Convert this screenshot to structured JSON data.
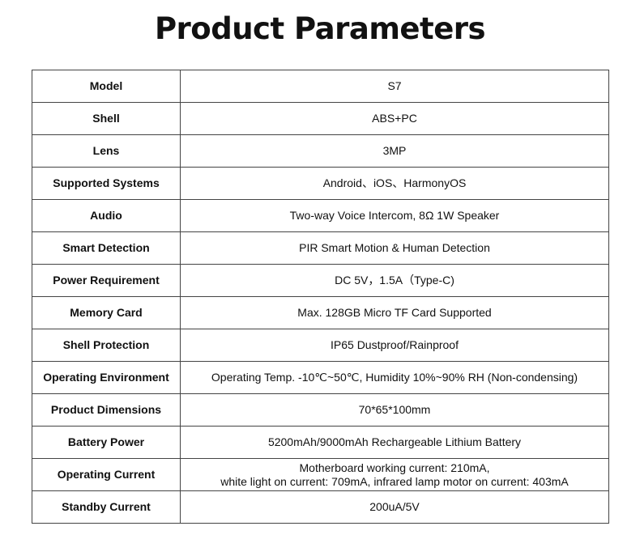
{
  "title": "Product Parameters",
  "rows": [
    {
      "label": "Model",
      "value": "S7"
    },
    {
      "label": "Shell",
      "value": "ABS+PC"
    },
    {
      "label": "Lens",
      "value": "3MP"
    },
    {
      "label": "Supported Systems",
      "value": "Android、iOS、HarmonyOS"
    },
    {
      "label": "Audio",
      "value": "Two-way Voice Intercom, 8Ω 1W Speaker"
    },
    {
      "label": "Smart Detection",
      "value": "PIR Smart Motion & Human Detection"
    },
    {
      "label": "Power Requirement",
      "value": "DC 5V，1.5A（Type-C)"
    },
    {
      "label": "Memory Card",
      "value": "Max. 128GB Micro TF Card Supported"
    },
    {
      "label": "Shell Protection",
      "value": "IP65 Dustproof/Rainproof"
    },
    {
      "label": "Operating Environment",
      "value": "Operating Temp. -10℃~50℃, Humidity 10%~90% RH (Non-condensing)"
    },
    {
      "label": "Product Dimensions",
      "value": "70*65*100mm"
    },
    {
      "label": "Battery Power",
      "value": "5200mAh/9000mAh Rechargeable Lithium Battery"
    },
    {
      "label": "Operating Current",
      "value": "Motherboard working current: 210mA,",
      "value2": "white light on current: 709mA, infrared lamp motor on current: 403mA"
    },
    {
      "label": "Standby Current",
      "value": "200uA/5V"
    }
  ]
}
